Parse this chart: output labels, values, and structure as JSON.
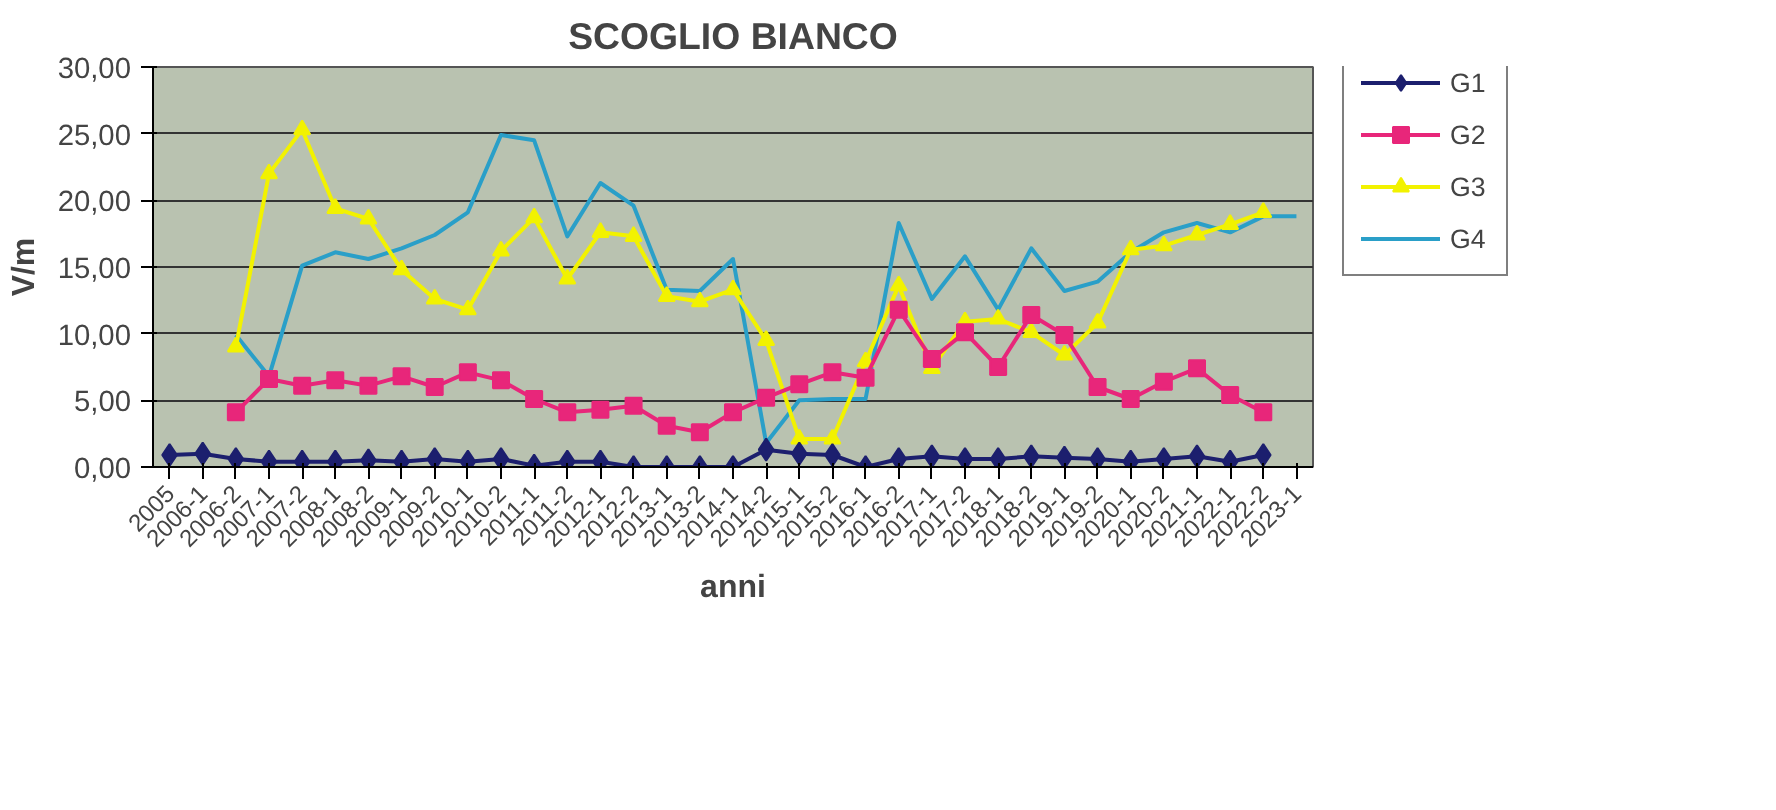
{
  "chart_data": {
    "type": "line",
    "title": "SCOGLIO BIANCO",
    "xlabel": "anni",
    "ylabel": "V/m",
    "categories": [
      "2005",
      "2006-1",
      "2006-2",
      "2007-1",
      "2007-2",
      "2008-1",
      "2008-2",
      "2009-1",
      "2009-2",
      "2010-1",
      "2010-2",
      "2011-1",
      "2011-2",
      "2012-1",
      "2012-2",
      "2013-1",
      "2013-2",
      "2014-1",
      "2014-2",
      "2015-1",
      "2015-2",
      "2016-1",
      "2016-2",
      "2017-1",
      "2017-2",
      "2018-1",
      "2018-2",
      "2019-1",
      "2019-2",
      "2020-1",
      "2020-2",
      "2021-1",
      "2022-1",
      "2022-2",
      "2023-1"
    ],
    "series": [
      {
        "name": "G1",
        "color": "#1c1f6e",
        "marker": "diamond",
        "values": [
          0.9,
          1.0,
          0.6,
          0.4,
          0.4,
          0.4,
          0.5,
          0.4,
          0.6,
          0.4,
          0.6,
          0.1,
          0.4,
          0.4,
          0.0,
          0.0,
          0.0,
          0.0,
          1.3,
          1.0,
          0.9,
          0.0,
          0.6,
          0.8,
          0.6,
          0.6,
          0.8,
          0.7,
          0.6,
          0.4,
          0.6,
          0.8,
          0.4,
          0.9,
          null
        ]
      },
      {
        "name": "G2",
        "color": "#e8267a",
        "marker": "square",
        "values": [
          null,
          null,
          4.1,
          6.6,
          6.1,
          6.5,
          6.1,
          6.8,
          6.0,
          7.1,
          6.5,
          5.1,
          4.1,
          4.3,
          4.6,
          3.1,
          2.6,
          4.1,
          5.2,
          6.2,
          7.1,
          6.7,
          11.8,
          8.1,
          10.1,
          7.5,
          11.4,
          9.9,
          6.0,
          5.1,
          6.4,
          7.4,
          5.4,
          4.1,
          null
        ]
      },
      {
        "name": "G3",
        "color": "#f2f200",
        "marker": "triangle",
        "values": [
          null,
          null,
          9.0,
          22.0,
          25.3,
          19.4,
          18.6,
          14.8,
          12.6,
          11.8,
          16.2,
          18.7,
          14.1,
          17.6,
          17.3,
          12.8,
          12.4,
          13.3,
          9.5,
          2.1,
          2.1,
          7.9,
          13.6,
          7.4,
          10.9,
          11.1,
          10.1,
          8.4,
          10.8,
          16.3,
          16.6,
          17.4,
          18.2,
          19.1,
          null
        ]
      },
      {
        "name": "G4",
        "color": "#2a9fc8",
        "marker": "none",
        "values": [
          null,
          null,
          9.9,
          6.8,
          15.1,
          16.1,
          15.6,
          16.4,
          17.4,
          19.1,
          24.9,
          24.5,
          17.3,
          21.3,
          19.6,
          13.3,
          13.2,
          15.6,
          1.8,
          5.0,
          5.1,
          5.1,
          18.3,
          12.6,
          15.8,
          11.8,
          16.4,
          13.2,
          13.9,
          16.1,
          17.6,
          18.3,
          17.6,
          18.8,
          18.8
        ]
      }
    ],
    "ylim": [
      0,
      30
    ],
    "yticks": [
      {
        "value": 0,
        "label": "0,00"
      },
      {
        "value": 5,
        "label": "5,00"
      },
      {
        "value": 10,
        "label": "10,00"
      },
      {
        "value": 15,
        "label": "15,00"
      },
      {
        "value": 20,
        "label": "20,00"
      },
      {
        "value": 25,
        "label": "25,00"
      },
      {
        "value": 30,
        "label": "30,00"
      }
    ],
    "grid": "y",
    "legend": "right"
  }
}
